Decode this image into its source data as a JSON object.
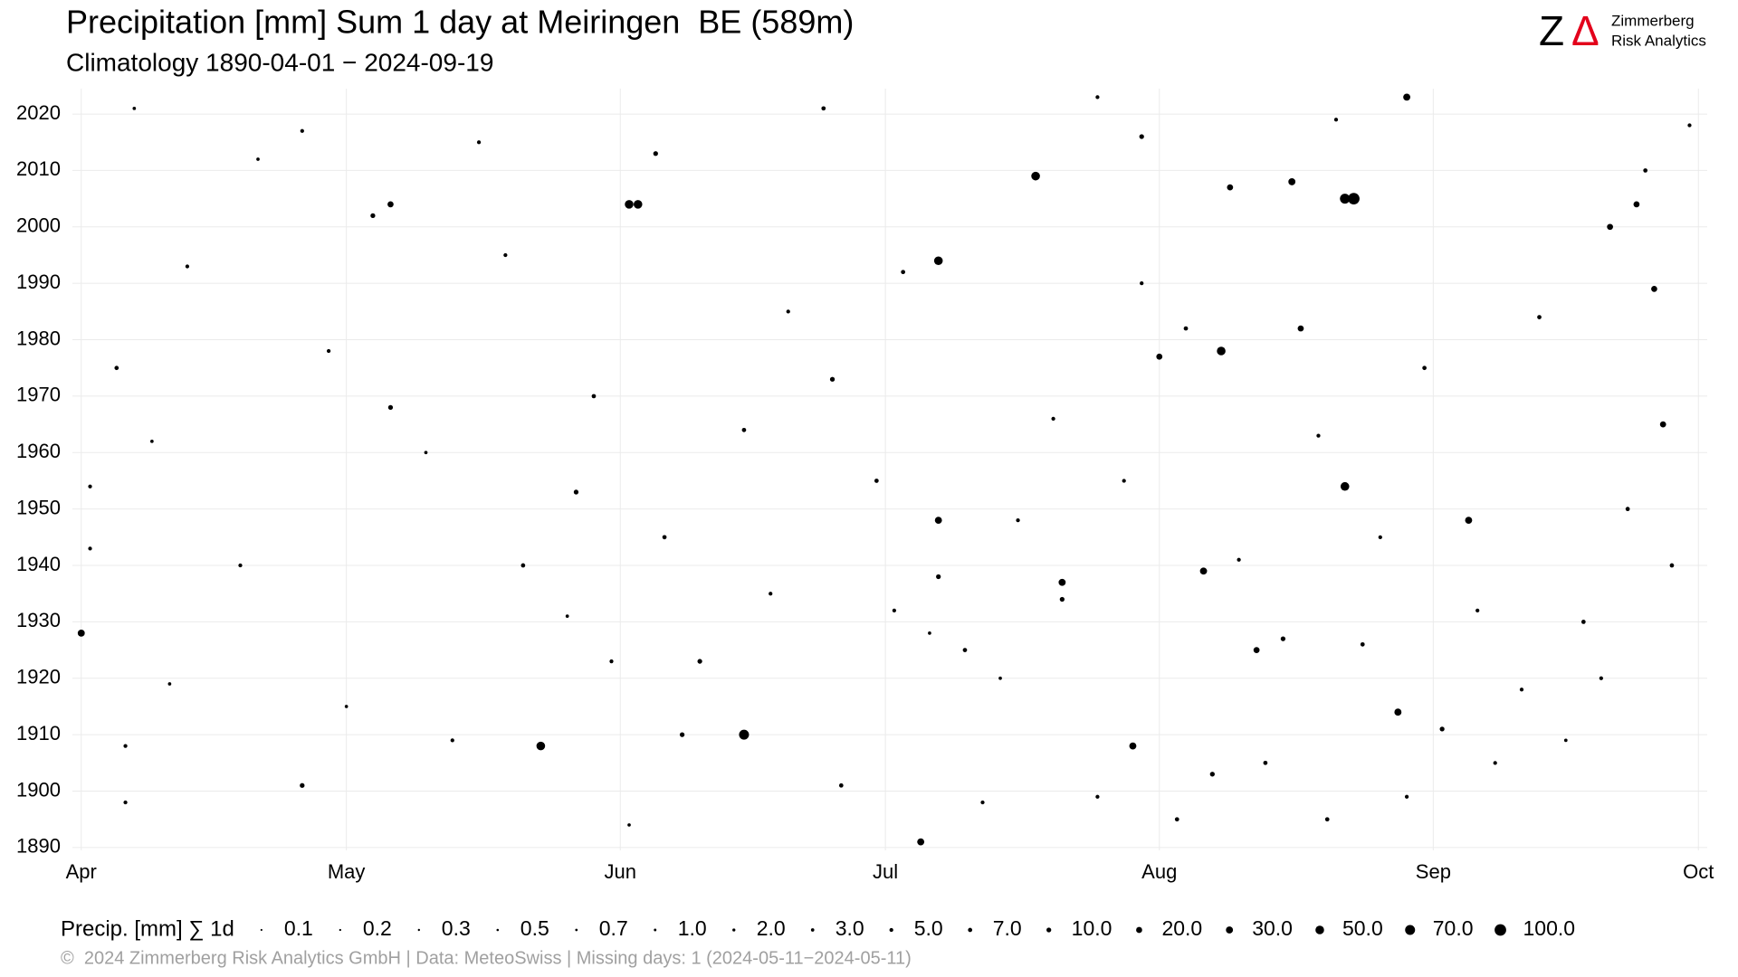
{
  "chart_data": {
    "type": "scatter",
    "title": "Precipitation [mm] Sum 1 day at Meiringen  BE (589m)",
    "subtitle": "Climatology 1890-04-01 − 2024-09-19",
    "logo": {
      "mark": "Z",
      "delta": "Δ",
      "line1": "Zimmerberg",
      "line2": "Risk Analytics"
    },
    "footer": "©  2024 Zimmerberg Risk Analytics GmbH | Data: MeteoSwiss | Missing days: 1 (2024-05-11−2024-05-11)",
    "color": "#000000",
    "grid": true,
    "xlim": [
      -1,
      184
    ],
    "xticks": [
      {
        "value": 0,
        "label": "Apr"
      },
      {
        "value": 30,
        "label": "May"
      },
      {
        "value": 61,
        "label": "Jun"
      },
      {
        "value": 91,
        "label": "Jul"
      },
      {
        "value": 122,
        "label": "Aug"
      },
      {
        "value": 153,
        "label": "Sep"
      },
      {
        "value": 183,
        "label": "Oct"
      }
    ],
    "ylim": [
      1889.5,
      2024.5
    ],
    "yticks": [
      1890,
      1900,
      1910,
      1920,
      1930,
      1940,
      1950,
      1960,
      1970,
      1980,
      1990,
      2000,
      2010,
      2020
    ],
    "points": {
      "x": [
        144,
        143,
        75,
        52,
        129,
        62,
        63,
        97,
        143,
        108,
        111,
        0,
        157,
        119,
        127,
        150,
        137,
        130,
        149,
        95,
        97,
        138,
        122,
        133,
        178,
        173,
        176,
        179,
        35,
        5,
        10,
        4,
        18,
        25,
        30,
        39,
        45,
        50,
        55,
        58,
        60,
        66,
        70,
        75,
        80,
        85,
        90,
        92,
        100,
        104,
        110,
        115,
        120,
        125,
        131,
        134,
        140,
        147,
        152,
        158,
        163,
        170,
        175,
        180,
        182,
        33,
        65,
        93,
        120,
        56,
        68,
        97,
        111,
        136,
        154,
        165,
        145,
        20,
        12,
        8,
        28,
        35,
        42,
        48,
        62,
        78,
        86,
        96,
        102,
        106,
        118,
        124,
        128,
        141,
        150,
        160,
        168,
        177,
        172,
        84,
        115,
        142,
        25,
        6,
        1,
        1,
        5
      ],
      "y": [
        2005,
        2005,
        1910,
        1908,
        1978,
        2004,
        2004,
        1994,
        1954,
        2009,
        1937,
        1928,
        1948,
        1908,
        1939,
        2023,
        2008,
        2007,
        1914,
        1891,
        1948,
        1982,
        1977,
        1925,
        1989,
        2000,
        2004,
        1965,
        2004,
        1898,
        1919,
        1975,
        1940,
        1901,
        1915,
        1960,
        2015,
        1940,
        1931,
        1970,
        1923,
        1945,
        1923,
        1964,
        1985,
        1973,
        1955,
        1932,
        1925,
        1920,
        1966,
        1899,
        1990,
        1982,
        1941,
        1905,
        1963,
        1945,
        1975,
        1932,
        1918,
        1930,
        1950,
        1940,
        2018,
        2002,
        2013,
        1992,
        2016,
        1953,
        1910,
        1938,
        1934,
        1927,
        1911,
        1984,
        1926,
        2012,
        1993,
        1962,
        1978,
        1968,
        1909,
        1995,
        1894,
        1935,
        1901,
        1928,
        1898,
        1948,
        1955,
        1895,
        1903,
        1895,
        1899,
        1905,
        1909,
        2010,
        1920,
        2021,
        2023,
        2019,
        2017,
        2021,
        1954,
        1943,
        1908
      ],
      "sizes": [
        100,
        70,
        70,
        50,
        50,
        50,
        50,
        50,
        50,
        50,
        30,
        30,
        30,
        30,
        30,
        30,
        30,
        20,
        30,
        30,
        30,
        20,
        20,
        20,
        20,
        20,
        20,
        20,
        20,
        5,
        3,
        7,
        5,
        10,
        3,
        3,
        5,
        7,
        3,
        7,
        5,
        7,
        10,
        7,
        5,
        10,
        7,
        5,
        7,
        3,
        5,
        5,
        5,
        7,
        5,
        7,
        5,
        5,
        7,
        5,
        5,
        7,
        7,
        7,
        5,
        10,
        10,
        7,
        10,
        10,
        10,
        10,
        10,
        10,
        10,
        7,
        7,
        3,
        5,
        3,
        5,
        10,
        5,
        5,
        3,
        5,
        7,
        3,
        5,
        5,
        5,
        7,
        10,
        7,
        5,
        5,
        3,
        7,
        5,
        7,
        5,
        5,
        5,
        3,
        5,
        5,
        5
      ]
    },
    "size_legend": {
      "title": "Precip. [mm] ∑ 1d",
      "values": [
        0.1,
        0.2,
        0.3,
        0.5,
        0.7,
        1,
        2,
        3,
        5,
        7,
        10,
        20,
        30,
        50,
        70,
        100
      ],
      "value_labels": [
        "0.1",
        "0.2",
        "0.3",
        "0.5",
        "0.7",
        "1.0",
        "2.0",
        "3.0",
        "5.0",
        "7.0",
        "10.0",
        "20.0",
        "30.0",
        "50.0",
        "70.0",
        "100.0"
      ]
    }
  }
}
